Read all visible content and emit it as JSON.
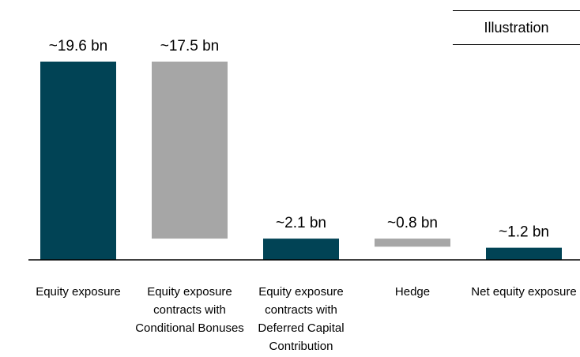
{
  "chart_data": {
    "type": "waterfall",
    "badge": "Illustration",
    "categories": [
      "Equity exposure",
      "Equity exposure contracts with Conditional Bonuses",
      "Equity exposure contracts with Deferred Capital Contribution",
      "Hedge",
      "Net equity exposure"
    ],
    "values": [
      19.6,
      17.5,
      2.1,
      0.8,
      1.2
    ],
    "value_labels": [
      "~19.6 bn",
      "~17.5 bn",
      "~2.1 bn",
      "~0.8 bn",
      "~1.2 bn"
    ],
    "measures": [
      "absolute",
      "decrease",
      "absolute",
      "decrease",
      "absolute"
    ],
    "total_color": "#014355",
    "change_color": "#a6a6a6"
  }
}
